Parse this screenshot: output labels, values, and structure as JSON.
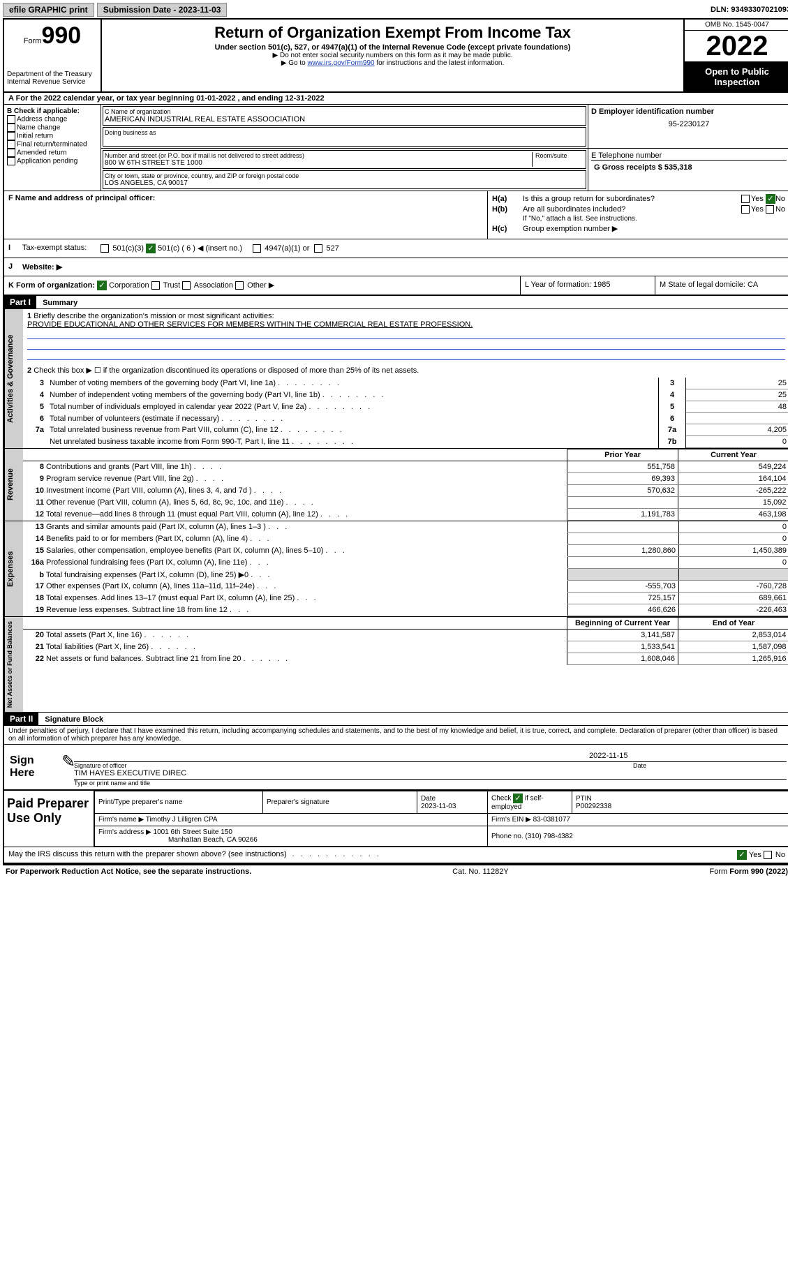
{
  "topbar": {
    "efile_label": "efile GRAPHIC print",
    "submission_label": "Submission Date - 2023-11-03",
    "dln_label": "DLN: 93493307021093"
  },
  "header": {
    "form_word": "Form",
    "form_num": "990",
    "dept": "Department of the Treasury\nInternal Revenue Service",
    "title": "Return of Organization Exempt From Income Tax",
    "subtitle": "Under section 501(c), 527, or 4947(a)(1) of the Internal Revenue Code (except private foundations)",
    "note1": "▶ Do not enter social security numbers on this form as it may be made public.",
    "note2_pre": "▶ Go to ",
    "note2_link": "www.irs.gov/Form990",
    "note2_post": " for instructions and the latest information.",
    "omb": "OMB No. 1545-0047",
    "year": "2022",
    "open_public": "Open to Public Inspection"
  },
  "section_a": "A For the 2022 calendar year, or tax year beginning 01-01-2022    , and ending 12-31-2022",
  "block_b": {
    "title": "B Check if applicable:",
    "items": [
      "Address change",
      "Name change",
      "Initial return",
      "Final return/terminated",
      "Amended return",
      "Application pending"
    ]
  },
  "block_c": {
    "name_label": "C Name of organization",
    "name": "AMERICAN INDUSTRIAL REAL ESTATE ASSOOCIATION",
    "dba_label": "Doing business as",
    "dba": "",
    "addr_label": "Number and street (or P.O. box if mail is not delivered to street address)",
    "addr": "800 W 6TH STREET STE 1000",
    "room_label": "Room/suite",
    "city_label": "City or town, state or province, country, and ZIP or foreign postal code",
    "city": "LOS ANGELES, CA  90017"
  },
  "block_d": {
    "label": "D Employer identification number",
    "value": "95-2230127"
  },
  "block_e": {
    "label": "E Telephone number",
    "value": ""
  },
  "block_f": {
    "label": "F Name and address of principal officer:"
  },
  "block_g": {
    "label": "G Gross receipts $ 535,318"
  },
  "block_h": {
    "ha": "Is this a group return for subordinates?",
    "hb": "Are all subordinates included?",
    "hb_note": "If \"No,\" attach a list. See instructions.",
    "hc": "Group exemption number ▶"
  },
  "block_i": {
    "label": "Tax-exempt status:",
    "opts": [
      "501(c)(3)",
      "501(c) ( 6 ) ◀ (insert no.)",
      "4947(a)(1) or",
      "527"
    ]
  },
  "block_j": {
    "label": "Website: ▶"
  },
  "block_k": {
    "label": "K Form of organization:",
    "opts": [
      "Corporation",
      "Trust",
      "Association",
      "Other ▶"
    ]
  },
  "block_l": "L Year of formation: 1985",
  "block_m": "M State of legal domicile: CA",
  "part1": {
    "header": "Part I",
    "title": "Summary",
    "q1": "Briefly describe the organization's mission or most significant activities:",
    "mission": "PROVIDE EDUCATIONAL AND OTHER SERVICES FOR MEMBERS WITHIN THE COMMERCIAL REAL ESTATE PROFESSION.",
    "q2": "Check this box ▶ ☐  if the organization discontinued its operations or disposed of more than 25% of its net assets.",
    "vtabs": {
      "ag": "Activities & Governance",
      "rev": "Revenue",
      "exp": "Expenses",
      "nab": "Net Assets or Fund Balances"
    },
    "rows_single": [
      {
        "n": "3",
        "label": "Number of voting members of the governing body (Part VI, line 1a)",
        "box": "3",
        "val": "25"
      },
      {
        "n": "4",
        "label": "Number of independent voting members of the governing body (Part VI, line 1b)",
        "box": "4",
        "val": "25"
      },
      {
        "n": "5",
        "label": "Total number of individuals employed in calendar year 2022 (Part V, line 2a)",
        "box": "5",
        "val": "48"
      },
      {
        "n": "6",
        "label": "Total number of volunteers (estimate if necessary)",
        "box": "6",
        "val": ""
      },
      {
        "n": "7a",
        "label": "Total unrelated business revenue from Part VIII, column (C), line 12",
        "box": "7a",
        "val": "4,205"
      },
      {
        "n": "",
        "label": "Net unrelated business taxable income from Form 990-T, Part I, line 11",
        "box": "7b",
        "val": "0"
      }
    ],
    "col_headers": {
      "prior": "Prior Year",
      "current": "Current Year",
      "boy": "Beginning of Current Year",
      "eoy": "End of Year"
    },
    "rows_rev": [
      {
        "n": "8",
        "label": "Contributions and grants (Part VIII, line 1h)",
        "p": "551,758",
        "c": "549,224"
      },
      {
        "n": "9",
        "label": "Program service revenue (Part VIII, line 2g)",
        "p": "69,393",
        "c": "164,104"
      },
      {
        "n": "10",
        "label": "Investment income (Part VIII, column (A), lines 3, 4, and 7d )",
        "p": "570,632",
        "c": "-265,222"
      },
      {
        "n": "11",
        "label": "Other revenue (Part VIII, column (A), lines 5, 6d, 8c, 9c, 10c, and 11e)",
        "p": "",
        "c": "15,092"
      },
      {
        "n": "12",
        "label": "Total revenue—add lines 8 through 11 (must equal Part VIII, column (A), line 12)",
        "p": "1,191,783",
        "c": "463,198"
      }
    ],
    "rows_exp": [
      {
        "n": "13",
        "label": "Grants and similar amounts paid (Part IX, column (A), lines 1–3 )",
        "p": "",
        "c": "0"
      },
      {
        "n": "14",
        "label": "Benefits paid to or for members (Part IX, column (A), line 4)",
        "p": "",
        "c": "0"
      },
      {
        "n": "15",
        "label": "Salaries, other compensation, employee benefits (Part IX, column (A), lines 5–10)",
        "p": "1,280,860",
        "c": "1,450,389"
      },
      {
        "n": "16a",
        "label": "Professional fundraising fees (Part IX, column (A), line 11e)",
        "p": "",
        "c": "0"
      },
      {
        "n": "b",
        "label": "Total fundraising expenses (Part IX, column (D), line 25) ▶0",
        "p": "shaded",
        "c": "shaded"
      },
      {
        "n": "17",
        "label": "Other expenses (Part IX, column (A), lines 11a–11d, 11f–24e)",
        "p": "-555,703",
        "c": "-760,728"
      },
      {
        "n": "18",
        "label": "Total expenses. Add lines 13–17 (must equal Part IX, column (A), line 25)",
        "p": "725,157",
        "c": "689,661"
      },
      {
        "n": "19",
        "label": "Revenue less expenses. Subtract line 18 from line 12",
        "p": "466,626",
        "c": "-226,463"
      }
    ],
    "rows_nab": [
      {
        "n": "20",
        "label": "Total assets (Part X, line 16)",
        "p": "3,141,587",
        "c": "2,853,014"
      },
      {
        "n": "21",
        "label": "Total liabilities (Part X, line 26)",
        "p": "1,533,541",
        "c": "1,587,098"
      },
      {
        "n": "22",
        "label": "Net assets or fund balances. Subtract line 21 from line 20",
        "p": "1,608,046",
        "c": "1,265,916"
      }
    ]
  },
  "part2": {
    "header": "Part II",
    "title": "Signature Block",
    "declaration": "Under penalties of perjury, I declare that I have examined this return, including accompanying schedules and statements, and to the best of my knowledge and belief, it is true, correct, and complete. Declaration of preparer (other than officer) is based on all information of which preparer has any knowledge.",
    "sign_here": "Sign Here",
    "sig_officer": "Signature of officer",
    "sig_date": "2022-11-15",
    "date_label": "Date",
    "officer_name": "TIM HAYES  EXECUTIVE DIREC",
    "officer_title_label": "Type or print name and title",
    "paid_preparer": "Paid Preparer Use Only",
    "pp": {
      "print_label": "Print/Type preparer's name",
      "sig_label": "Preparer's signature",
      "date_label": "Date",
      "date": "2023-11-03",
      "check_label": "Check         if self-employed",
      "ptin_label": "PTIN",
      "ptin": "P00292338",
      "firm_name_label": "Firm's name    ▶",
      "firm_name": "Timothy J Lilligren CPA",
      "firm_ein_label": "Firm's EIN ▶",
      "firm_ein": "83-0381077",
      "firm_addr_label": "Firm's address ▶",
      "firm_addr1": "1001 6th Street Suite 150",
      "firm_addr2": "Manhattan Beach, CA  90266",
      "phone_label": "Phone no.",
      "phone": "(310) 798-4382"
    },
    "may_irs": "May the IRS discuss this return with the preparer shown above? (see instructions)"
  },
  "footer": {
    "left": "For Paperwork Reduction Act Notice, see the separate instructions.",
    "mid": "Cat. No. 11282Y",
    "right": "Form 990 (2022)"
  }
}
